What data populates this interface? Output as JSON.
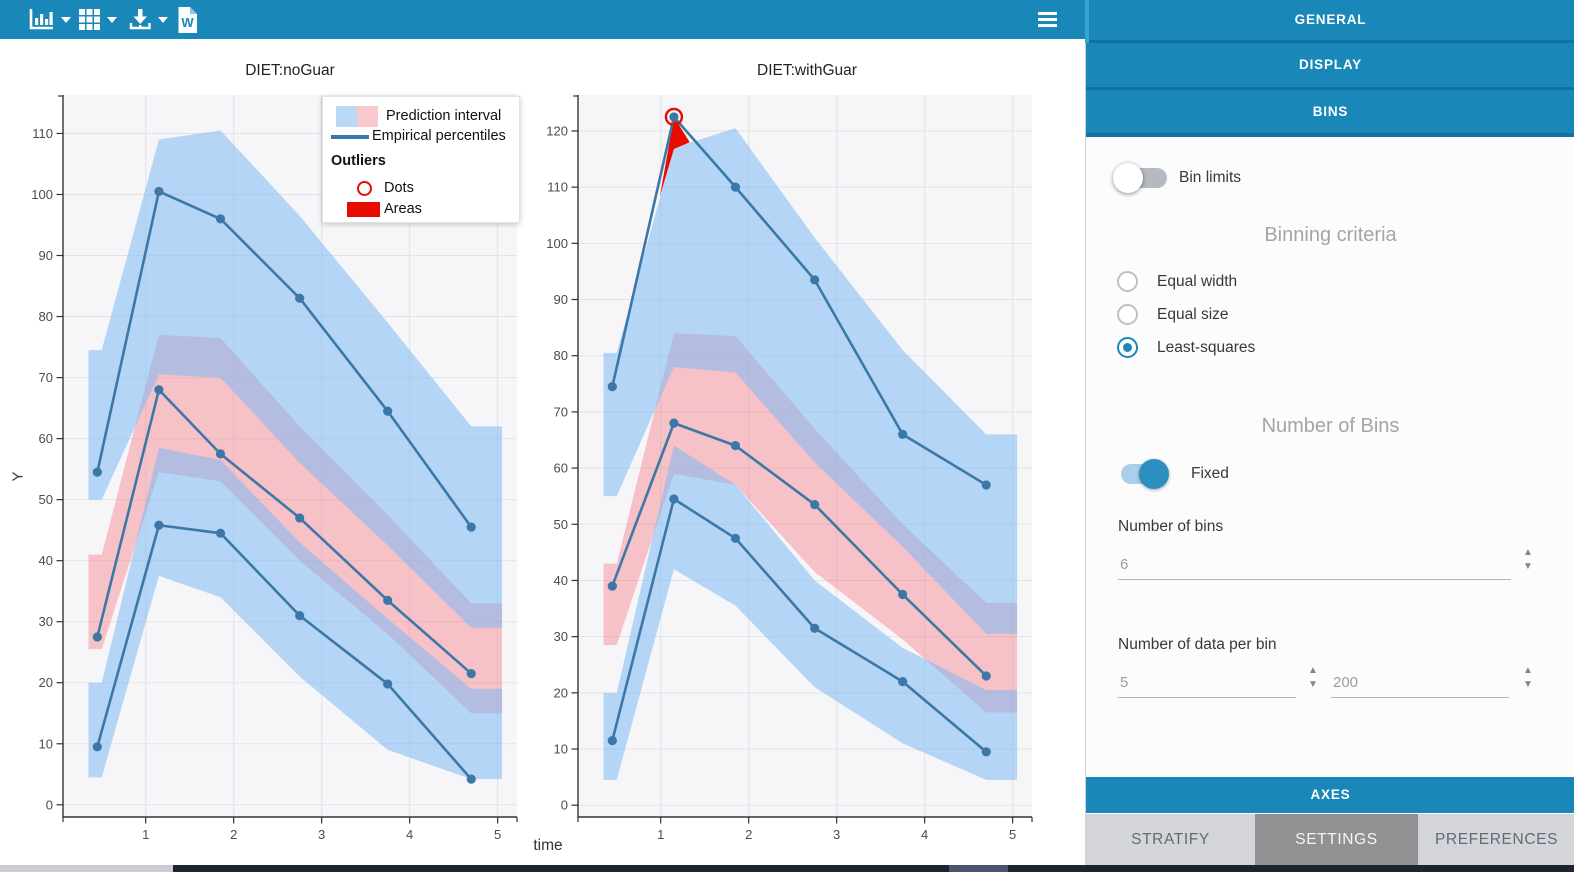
{
  "toolbar": {
    "icons": [
      "plot-type-icon",
      "layout-grid-icon",
      "download-icon",
      "word-export-icon",
      "menu-icon"
    ],
    "word_letter": "W"
  },
  "figure": {
    "y_axis_label": "Y",
    "x_axis_label": "time",
    "legend": {
      "prediction_interval": "Prediction interval",
      "empirical_percentiles": "Empirical percentiles",
      "outliers_title": "Outliers",
      "dots": "Dots",
      "areas": "Areas"
    },
    "colors": {
      "accent_blue": "#1987b8",
      "line_blue": "#3b78a8",
      "band_blue": "#7db9f2",
      "band_pink": "#f67882",
      "outlier_red": "#e80c00",
      "plot_background": "#f6f6f9",
      "gridline": "#e2e3e8"
    }
  },
  "chart_data": [
    {
      "type": "line",
      "title": "DIET:noGuar",
      "xlabel": "time",
      "ylabel": "Y",
      "x_ticks": [
        1,
        2,
        3,
        4,
        5
      ],
      "y_ticks": [
        0,
        10,
        20,
        30,
        40,
        50,
        60,
        70,
        80,
        90,
        100,
        110
      ],
      "x_domain": [
        0.06,
        5.22
      ],
      "y_domain": [
        -2,
        116.3
      ],
      "grid": true,
      "series": [
        {
          "name": "empirical_p90",
          "x": [
            0.45,
            1.15,
            1.85,
            2.75,
            3.75,
            4.7
          ],
          "y": [
            54.5,
            100.5,
            96,
            83,
            64.5,
            45.5
          ]
        },
        {
          "name": "empirical_p50",
          "x": [
            0.45,
            1.15,
            1.85,
            2.75,
            3.75,
            4.7
          ],
          "y": [
            27.5,
            68,
            57.5,
            47,
            33.5,
            21.5
          ]
        },
        {
          "name": "empirical_p10",
          "x": [
            0.45,
            1.15,
            1.85,
            2.75,
            3.75,
            4.7
          ],
          "y": [
            9.5,
            45.8,
            44.5,
            31,
            19.8,
            4.2
          ]
        }
      ],
      "bands": [
        {
          "name": "prediction_interval_p50",
          "color": "pink",
          "x": [
            0.35,
            0.5,
            1.15,
            1.85,
            2.75,
            3.75,
            4.7,
            5.05
          ],
          "hi": [
            41,
            41,
            77,
            76.5,
            62,
            47.5,
            33,
            33
          ],
          "lo": [
            25.5,
            25.5,
            54.5,
            53,
            40,
            28,
            15,
            15
          ]
        },
        {
          "name": "prediction_interval_p90",
          "color": "blue",
          "x": [
            0.35,
            0.5,
            1.15,
            1.85,
            2.75,
            3.75,
            4.7,
            5.05
          ],
          "hi": [
            74.5,
            74.5,
            109,
            110.5,
            96.5,
            79,
            62,
            62
          ],
          "lo": [
            50,
            50,
            70.5,
            70,
            56,
            42.5,
            29,
            29
          ]
        },
        {
          "name": "prediction_interval_p10",
          "color": "blue",
          "x": [
            0.35,
            0.5,
            1.15,
            1.85,
            2.75,
            3.75,
            4.7,
            5.05
          ],
          "hi": [
            20,
            20,
            58.5,
            56.5,
            43,
            30.5,
            19,
            19
          ],
          "lo": [
            4.5,
            4.5,
            37.5,
            34,
            21,
            9,
            4.2,
            4.2
          ]
        }
      ],
      "outliers": {
        "dots": [],
        "areas": []
      }
    },
    {
      "type": "line",
      "title": "DIET:withGuar",
      "xlabel": "time",
      "ylabel": "Y",
      "x_ticks": [
        1,
        2,
        3,
        4,
        5
      ],
      "y_ticks": [
        0,
        10,
        20,
        30,
        40,
        50,
        60,
        70,
        80,
        90,
        100,
        110,
        120
      ],
      "x_domain": [
        0.06,
        5.22
      ],
      "y_domain": [
        -2.1,
        126.4
      ],
      "grid": true,
      "series": [
        {
          "name": "empirical_p90",
          "x": [
            0.45,
            1.15,
            1.85,
            2.75,
            3.75,
            4.7
          ],
          "y": [
            74.5,
            122.5,
            110,
            93.5,
            66,
            57
          ]
        },
        {
          "name": "empirical_p50",
          "x": [
            0.45,
            1.15,
            1.85,
            2.75,
            3.75,
            4.7
          ],
          "y": [
            39,
            68,
            64,
            53.5,
            37.5,
            23
          ]
        },
        {
          "name": "empirical_p10",
          "x": [
            0.45,
            1.15,
            1.85,
            2.75,
            3.75,
            4.7
          ],
          "y": [
            11.5,
            54.5,
            47.5,
            31.5,
            22,
            9.5
          ]
        }
      ],
      "bands": [
        {
          "name": "prediction_interval_p50",
          "color": "pink",
          "x": [
            0.35,
            0.5,
            1.15,
            1.85,
            2.75,
            3.75,
            4.7,
            5.05
          ],
          "hi": [
            43,
            43,
            84,
            83.5,
            67,
            50,
            36,
            36
          ],
          "lo": [
            28.5,
            28.5,
            59,
            57,
            41.5,
            29.5,
            16.5,
            16.5
          ]
        },
        {
          "name": "prediction_interval_p90",
          "color": "blue",
          "x": [
            0.35,
            0.5,
            1.15,
            1.85,
            2.75,
            3.75,
            4.7,
            5.05
          ],
          "hi": [
            80.5,
            80.5,
            117,
            120.5,
            101,
            81,
            66,
            66
          ],
          "lo": [
            55,
            55,
            78,
            77,
            61,
            46,
            30.5,
            30.5
          ]
        },
        {
          "name": "prediction_interval_p10",
          "color": "blue",
          "x": [
            0.35,
            0.5,
            1.15,
            1.85,
            2.75,
            3.75,
            4.7,
            5.05
          ],
          "hi": [
            20,
            20,
            64,
            57,
            40,
            28,
            20.5,
            20.5
          ],
          "lo": [
            4.5,
            4.5,
            42,
            35.5,
            21,
            11,
            4.5,
            4.5
          ]
        }
      ],
      "outliers": {
        "dots": [
          [
            1.15,
            122.5
          ]
        ],
        "areas": [
          [
            [
              0.99,
              108.3
            ],
            [
              1.15,
              122.5
            ],
            [
              1.33,
              118
            ],
            [
              1.15,
              116.8
            ],
            [
              1.05,
              111.5
            ]
          ]
        ]
      }
    }
  ],
  "settings_panel": {
    "sections": {
      "general": "GENERAL",
      "display": "DISPLAY",
      "bins": "BINS",
      "axes": "AXES"
    },
    "bins": {
      "bin_limits_label": "Bin limits",
      "bin_limits_on": false,
      "binning_criteria_title": "Binning criteria",
      "criteria_options": [
        {
          "label": "Equal width",
          "selected": false
        },
        {
          "label": "Equal size",
          "selected": false
        },
        {
          "label": "Least-squares",
          "selected": true
        }
      ],
      "number_of_bins_title": "Number of Bins",
      "fixed_label": "Fixed",
      "fixed_on": true,
      "number_of_bins_label": "Number of bins",
      "number_of_bins_value": "6",
      "data_per_bin_label": "Number of data per bin",
      "data_per_bin_min": "5",
      "data_per_bin_max": "200"
    },
    "tabs": [
      {
        "label": "STRATIFY",
        "active": false
      },
      {
        "label": "SETTINGS",
        "active": true
      },
      {
        "label": "PREFERENCES",
        "active": false
      }
    ]
  }
}
